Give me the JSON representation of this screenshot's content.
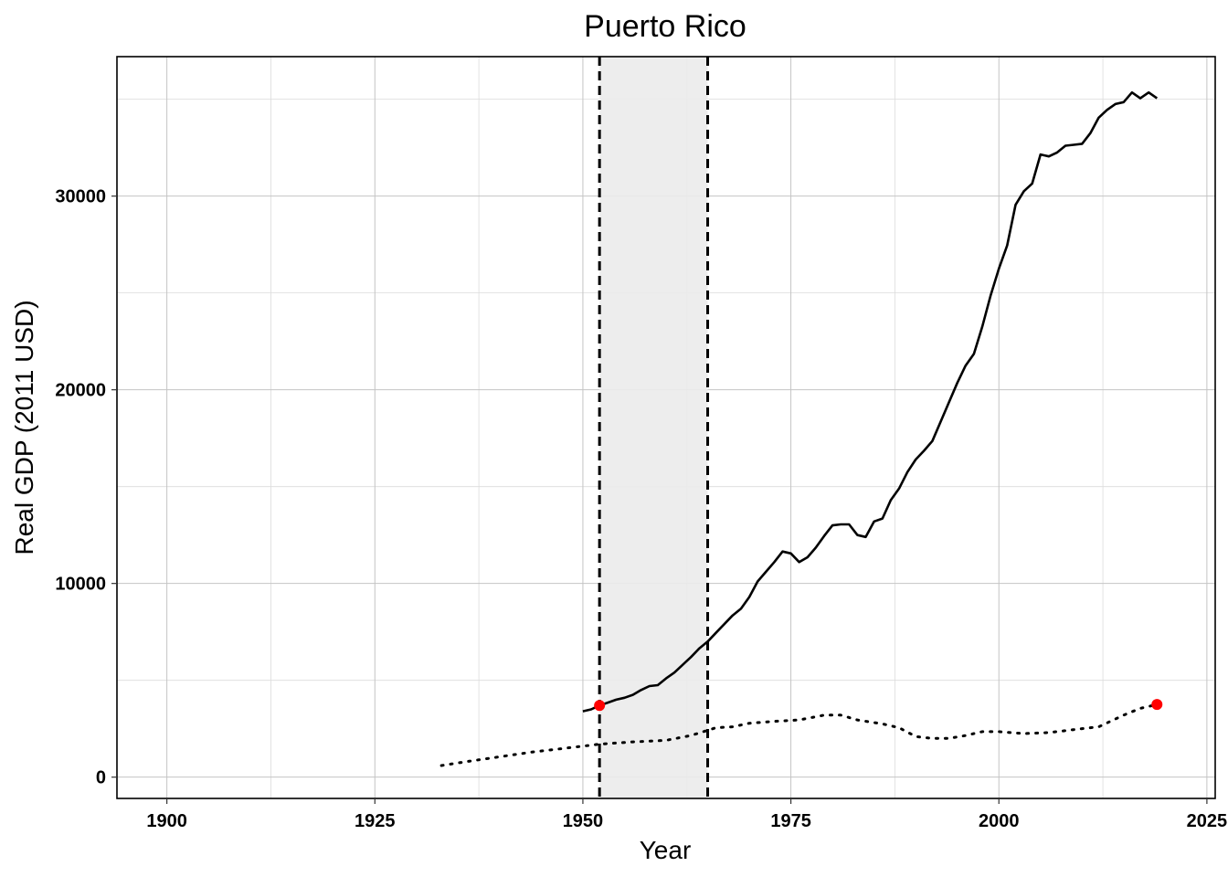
{
  "chart_data": {
    "type": "line",
    "title": "Puerto Rico",
    "xlabel": "Year",
    "ylabel": "Real GDP (2011 USD)",
    "xlim": [
      1894,
      2026
    ],
    "ylim": [
      -1100,
      37200
    ],
    "x_ticks": [
      1900,
      1925,
      1950,
      1975,
      2000,
      2025
    ],
    "y_ticks": [
      0,
      10000,
      20000,
      30000
    ],
    "grid": true,
    "shaded_region": {
      "x": [
        1952,
        1965
      ],
      "color": "#ebebeb"
    },
    "vertical_lines": [
      {
        "x": 1952,
        "style": "dashed",
        "color": "#000000"
      },
      {
        "x": 1965,
        "style": "dashed",
        "color": "#000000"
      }
    ],
    "series": [
      {
        "style": "solid",
        "color": "#000000",
        "points": [
          [
            1950,
            3400
          ],
          [
            1951,
            3500
          ],
          [
            1952,
            3700
          ],
          [
            1953,
            3850
          ],
          [
            1954,
            4000
          ],
          [
            1955,
            4100
          ],
          [
            1956,
            4250
          ],
          [
            1957,
            4500
          ],
          [
            1958,
            4700
          ],
          [
            1959,
            4750
          ],
          [
            1960,
            5100
          ],
          [
            1961,
            5400
          ],
          [
            1962,
            5800
          ],
          [
            1963,
            6200
          ],
          [
            1964,
            6650
          ],
          [
            1965,
            7000
          ],
          [
            1966,
            7450
          ],
          [
            1967,
            7900
          ],
          [
            1968,
            8350
          ],
          [
            1969,
            8700
          ],
          [
            1970,
            9300
          ],
          [
            1971,
            10100
          ],
          [
            1972,
            10600
          ],
          [
            1973,
            11100
          ],
          [
            1974,
            11650
          ],
          [
            1975,
            11550
          ],
          [
            1976,
            11100
          ],
          [
            1977,
            11350
          ],
          [
            1978,
            11850
          ],
          [
            1979,
            12450
          ],
          [
            1980,
            13000
          ],
          [
            1981,
            13050
          ],
          [
            1982,
            13050
          ],
          [
            1983,
            12500
          ],
          [
            1984,
            12400
          ],
          [
            1985,
            13200
          ],
          [
            1986,
            13350
          ],
          [
            1987,
            14300
          ],
          [
            1988,
            14900
          ],
          [
            1989,
            15750
          ],
          [
            1990,
            16400
          ],
          [
            1991,
            16850
          ],
          [
            1992,
            17350
          ],
          [
            1993,
            18350
          ],
          [
            1994,
            19350
          ],
          [
            1995,
            20350
          ],
          [
            1996,
            21250
          ],
          [
            1997,
            21850
          ],
          [
            1998,
            23250
          ],
          [
            1999,
            24850
          ],
          [
            2000,
            26250
          ],
          [
            2001,
            27450
          ],
          [
            2002,
            29550
          ],
          [
            2003,
            30250
          ],
          [
            2004,
            30650
          ],
          [
            2005,
            32150
          ],
          [
            2006,
            32050
          ],
          [
            2007,
            32250
          ],
          [
            2008,
            32600
          ],
          [
            2009,
            32650
          ],
          [
            2010,
            32700
          ],
          [
            2011,
            33250
          ],
          [
            2012,
            34050
          ],
          [
            2013,
            34450
          ],
          [
            2014,
            34750
          ],
          [
            2015,
            34850
          ],
          [
            2016,
            35350
          ],
          [
            2017,
            35050
          ],
          [
            2018,
            35350
          ],
          [
            2019,
            35050
          ]
        ]
      },
      {
        "style": "dotted",
        "color": "#000000",
        "points": [
          [
            1933,
            600
          ],
          [
            1936,
            800
          ],
          [
            1940,
            1050
          ],
          [
            1944,
            1300
          ],
          [
            1948,
            1500
          ],
          [
            1952,
            1700
          ],
          [
            1956,
            1820
          ],
          [
            1960,
            1900
          ],
          [
            1963,
            2150
          ],
          [
            1966,
            2550
          ],
          [
            1968,
            2600
          ],
          [
            1970,
            2780
          ],
          [
            1973,
            2880
          ],
          [
            1976,
            2950
          ],
          [
            1979,
            3200
          ],
          [
            1981,
            3200
          ],
          [
            1983,
            2950
          ],
          [
            1986,
            2750
          ],
          [
            1988,
            2550
          ],
          [
            1990,
            2100
          ],
          [
            1992,
            2000
          ],
          [
            1994,
            2000
          ],
          [
            1996,
            2150
          ],
          [
            1998,
            2350
          ],
          [
            2000,
            2350
          ],
          [
            2003,
            2250
          ],
          [
            2006,
            2300
          ],
          [
            2009,
            2450
          ],
          [
            2012,
            2600
          ],
          [
            2015,
            3200
          ],
          [
            2017,
            3550
          ],
          [
            2019,
            3750
          ]
        ]
      }
    ],
    "highlight_points": [
      {
        "x": 1952,
        "y": 3700,
        "color": "#ff0000"
      },
      {
        "x": 2019,
        "y": 3750,
        "color": "#ff0000"
      }
    ]
  }
}
